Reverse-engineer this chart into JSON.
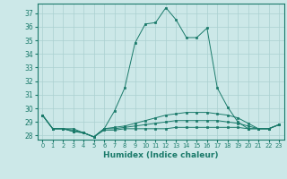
{
  "xlabel": "Humidex (Indice chaleur)",
  "x_values": [
    0,
    1,
    2,
    3,
    4,
    5,
    6,
    7,
    8,
    9,
    10,
    11,
    12,
    13,
    14,
    15,
    16,
    17,
    18,
    19,
    20,
    21,
    22,
    23
  ],
  "series": [
    [
      29.5,
      28.5,
      28.5,
      28.5,
      28.2,
      27.9,
      28.5,
      29.8,
      31.5,
      34.8,
      36.2,
      36.3,
      37.4,
      36.5,
      35.2,
      35.2,
      35.9,
      31.5,
      30.1,
      29.0,
      28.5,
      28.5,
      28.5,
      28.8
    ],
    [
      29.5,
      28.5,
      28.5,
      28.4,
      28.2,
      27.9,
      28.5,
      28.6,
      28.7,
      28.9,
      29.1,
      29.3,
      29.5,
      29.6,
      29.7,
      29.7,
      29.7,
      29.6,
      29.5,
      29.3,
      28.9,
      28.5,
      28.5,
      28.8
    ],
    [
      29.5,
      28.5,
      28.5,
      28.3,
      28.2,
      27.9,
      28.5,
      28.5,
      28.6,
      28.7,
      28.8,
      28.9,
      29.0,
      29.1,
      29.1,
      29.1,
      29.1,
      29.1,
      29.0,
      28.9,
      28.7,
      28.5,
      28.5,
      28.8
    ],
    [
      29.5,
      28.5,
      28.5,
      28.3,
      28.2,
      27.9,
      28.4,
      28.4,
      28.5,
      28.5,
      28.5,
      28.5,
      28.5,
      28.6,
      28.6,
      28.6,
      28.6,
      28.6,
      28.6,
      28.6,
      28.5,
      28.5,
      28.5,
      28.8
    ]
  ],
  "line_color": "#1a7a6a",
  "bg_color": "#cce8e8",
  "grid_color": "#aad0d0",
  "ylim": [
    27.7,
    37.7
  ],
  "yticks": [
    28,
    29,
    30,
    31,
    32,
    33,
    34,
    35,
    36,
    37
  ],
  "xlim": [
    -0.5,
    23.5
  ]
}
